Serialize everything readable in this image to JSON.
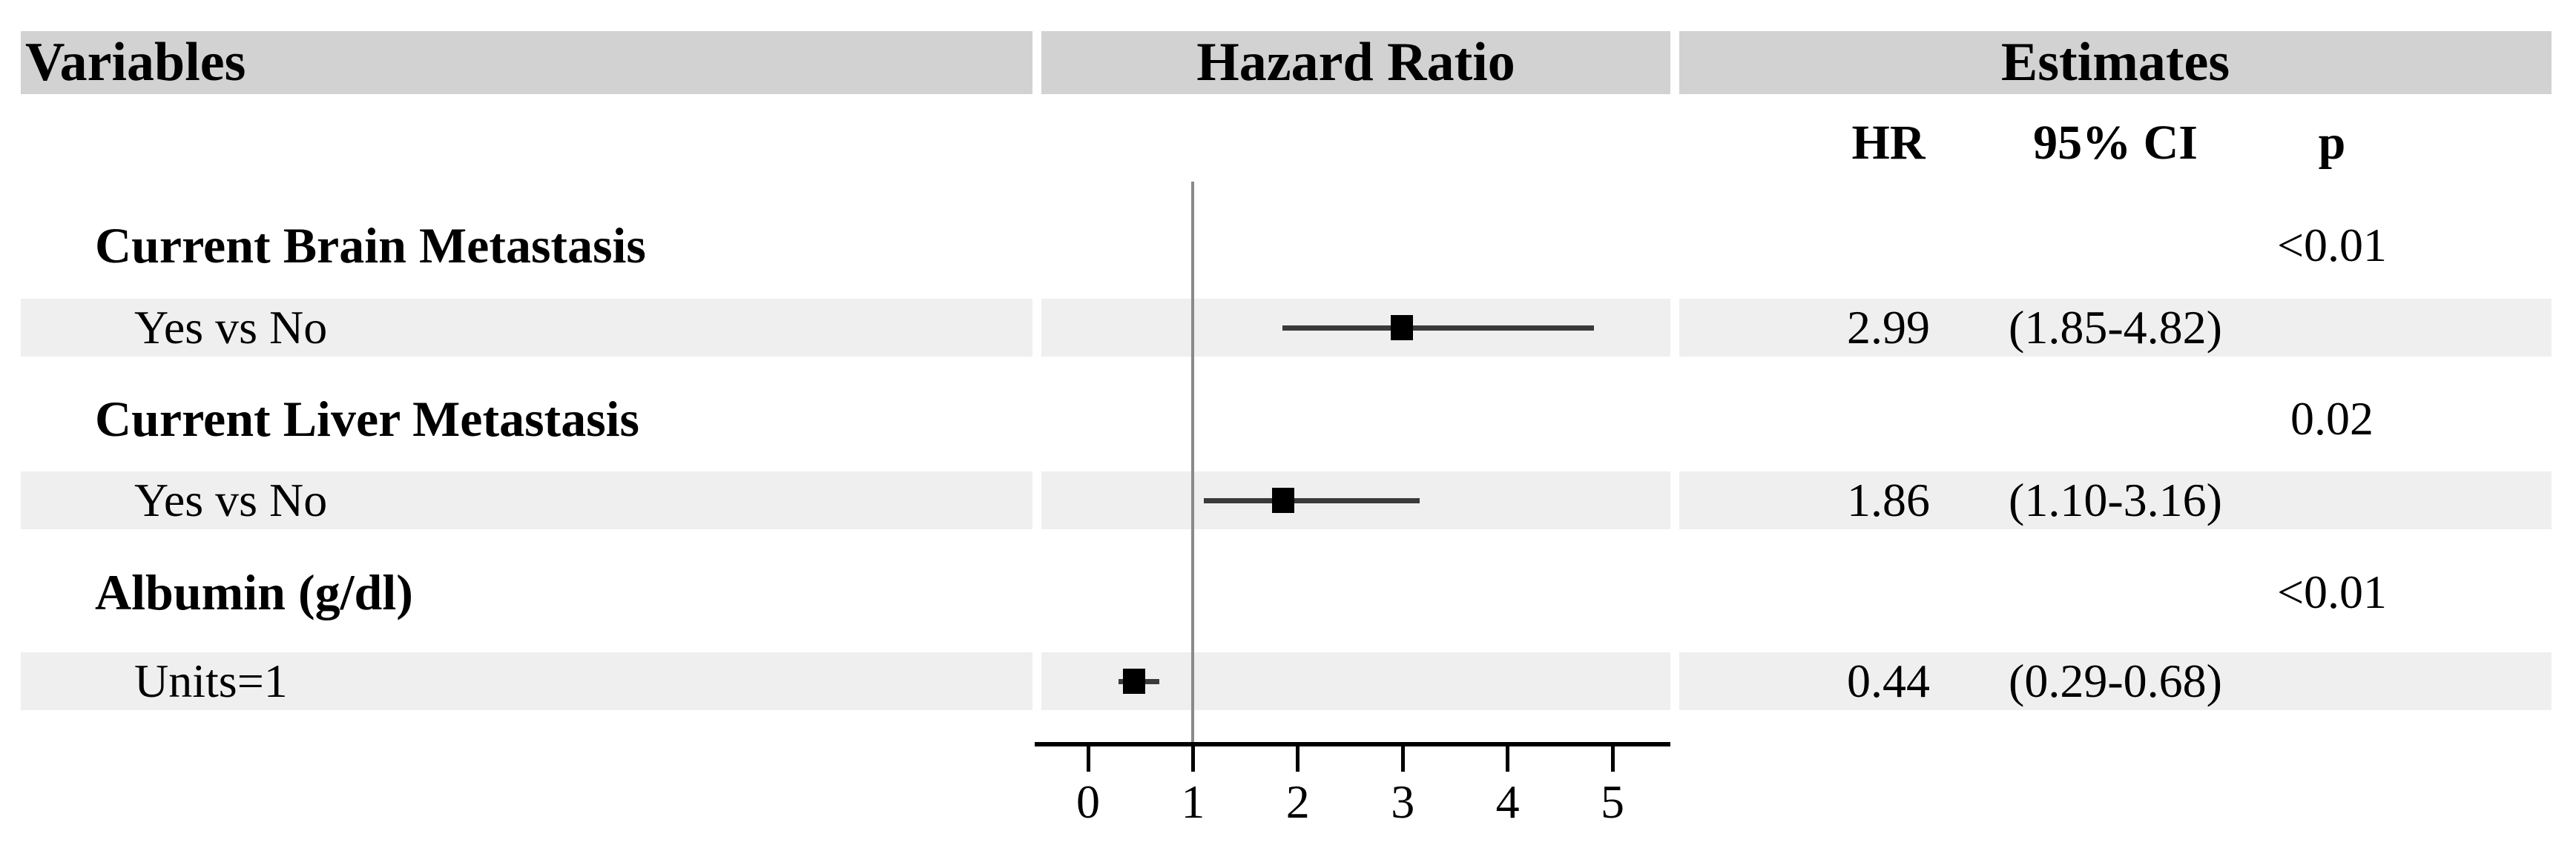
{
  "header": {
    "variables": "Variables",
    "hazard_ratio": "Hazard Ratio",
    "estimates": "Estimates"
  },
  "subheader": {
    "hr": "HR",
    "ci": "95% CI",
    "p": "p"
  },
  "chart_data": {
    "type": "forest",
    "title": "Hazard Ratio",
    "x_axis": {
      "ticks": [
        "0",
        "1",
        "2",
        "3",
        "4",
        "5"
      ],
      "tick_values": [
        0,
        1,
        2,
        3,
        4,
        5
      ],
      "range": [
        -0.5,
        5.55
      ],
      "reference_line": 1
    },
    "rows": [
      {
        "kind": "group",
        "label": "Current Brain Metastasis",
        "p": "<0.01"
      },
      {
        "kind": "estimate",
        "label": "Yes vs No",
        "hr": 2.99,
        "ci_low": 1.85,
        "ci_high": 4.82,
        "hr_text": "2.99",
        "ci_text": "(1.85-4.82)"
      },
      {
        "kind": "group",
        "label": "Current Liver Metastasis",
        "p": "0.02"
      },
      {
        "kind": "estimate",
        "label": "Yes vs No",
        "hr": 1.86,
        "ci_low": 1.1,
        "ci_high": 3.16,
        "hr_text": "1.86",
        "ci_text": "(1.10-3.16)"
      },
      {
        "kind": "group",
        "label": "Albumin (g/dl)",
        "p": "<0.01"
      },
      {
        "kind": "estimate",
        "label": "Units=1",
        "hr": 0.44,
        "ci_low": 0.29,
        "ci_high": 0.68,
        "hr_text": "0.44",
        "ci_text": "(0.29-0.68)"
      }
    ],
    "colors": {
      "header_bg": "#d2d2d2",
      "row_bg": "#efefef",
      "marker": "#000000",
      "ci_line": "#3a3a3a",
      "ref_line": "#8a8a8a",
      "axis": "#000000",
      "text": "#000000"
    }
  }
}
